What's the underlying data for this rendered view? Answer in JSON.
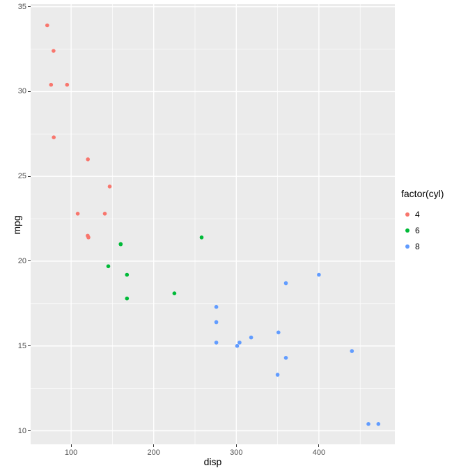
{
  "chart_data": {
    "type": "scatter",
    "title": "",
    "xlabel": "disp",
    "ylabel": "mpg",
    "xlim": [
      51,
      492
    ],
    "ylim": [
      9.2,
      35.15
    ],
    "x_ticks": [
      100,
      200,
      300,
      400
    ],
    "y_ticks": [
      10,
      15,
      20,
      25,
      30,
      35
    ],
    "x_minor_ticks": [
      150,
      250,
      350,
      450
    ],
    "y_minor_ticks": [
      12.5,
      17.5,
      22.5,
      27.5,
      32.5
    ],
    "grid": true,
    "panel_background": "#EBEBEB",
    "grid_color": "#FFFFFF",
    "tick_label_color": "#4D4D4D",
    "legend": {
      "title": "factor(cyl)",
      "position": "right",
      "entries": [
        {
          "label": "4",
          "color": "#F8766D"
        },
        {
          "label": "6",
          "color": "#00BA38"
        },
        {
          "label": "8",
          "color": "#619CFF"
        }
      ]
    },
    "series": [
      {
        "name": "4",
        "color": "#F8766D",
        "points": [
          [
            71.1,
            33.9
          ],
          [
            78.7,
            32.4
          ],
          [
            75.7,
            30.4
          ],
          [
            95.1,
            30.4
          ],
          [
            79,
            27.3
          ],
          [
            120.3,
            26.0
          ],
          [
            146.7,
            24.4
          ],
          [
            108,
            22.8
          ],
          [
            140.8,
            22.8
          ],
          [
            120.1,
            21.5
          ],
          [
            121,
            21.4
          ]
        ]
      },
      {
        "name": "6",
        "color": "#00BA38",
        "points": [
          [
            160,
            21.0
          ],
          [
            160,
            21.0
          ],
          [
            258,
            21.4
          ],
          [
            145,
            19.7
          ],
          [
            167.6,
            19.2
          ],
          [
            225,
            18.1
          ],
          [
            167.6,
            17.8
          ]
        ]
      },
      {
        "name": "8",
        "color": "#619CFF",
        "points": [
          [
            360,
            18.7
          ],
          [
            400,
            19.2
          ],
          [
            275.8,
            17.3
          ],
          [
            275.8,
            16.4
          ],
          [
            275.8,
            15.2
          ],
          [
            304,
            15.2
          ],
          [
            301,
            15.0
          ],
          [
            318,
            15.5
          ],
          [
            351,
            15.8
          ],
          [
            360,
            14.3
          ],
          [
            440,
            14.7
          ],
          [
            350,
            13.3
          ],
          [
            460,
            10.4
          ],
          [
            472,
            10.4
          ]
        ]
      }
    ]
  }
}
